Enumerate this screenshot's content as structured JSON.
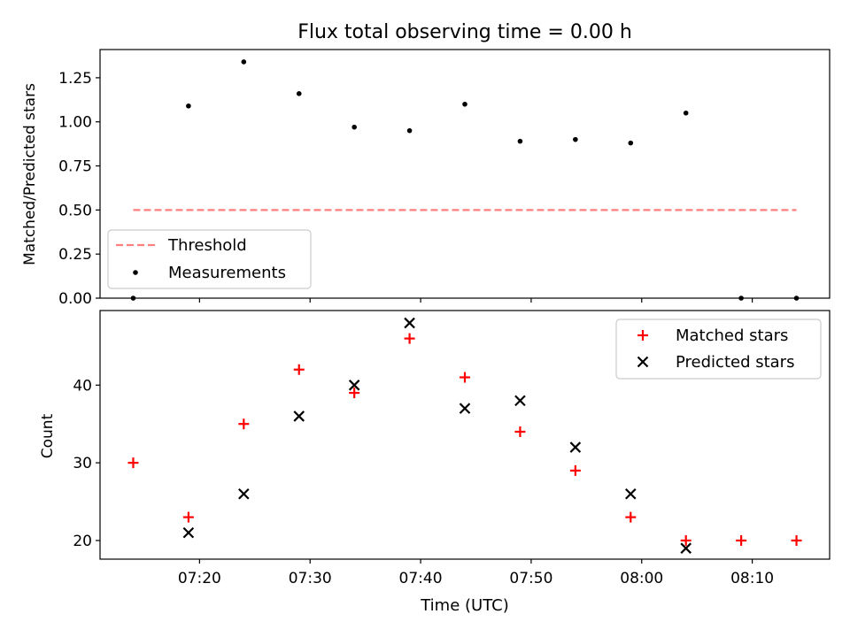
{
  "colors": {
    "threshold": "#ff7f7f",
    "measurement": "#000000",
    "matched": "#ff0000",
    "predicted": "#000000",
    "axes": "#000000",
    "legend_border": "#cccccc"
  },
  "chart_data": [
    {
      "type": "scatter",
      "title": "Flux total observing time = 0.00 h",
      "xlabel": "",
      "ylabel": "Matched/Predicted stars",
      "ylim": [
        0.0,
        1.41
      ],
      "yticks": [
        "0.00",
        "0.25",
        "0.50",
        "0.75",
        "1.00",
        "1.25"
      ],
      "ytick_values": [
        0.0,
        0.25,
        0.5,
        0.75,
        1.0,
        1.25
      ],
      "legend_position": "lower-left",
      "threshold": {
        "label": "Threshold",
        "value": 0.5,
        "x_start_min": 0,
        "x_end_min": 60,
        "style": "dashed"
      },
      "series": [
        {
          "name": "Measurements",
          "marker": "dot",
          "x_min": [
            0,
            5,
            10,
            15,
            20,
            25,
            30,
            35,
            40,
            45,
            50,
            55,
            60
          ],
          "values": [
            0.0,
            1.09,
            1.34,
            1.16,
            0.97,
            0.95,
            1.1,
            0.89,
            0.9,
            0.88,
            1.05,
            0.0,
            0.0
          ]
        }
      ]
    },
    {
      "type": "scatter",
      "xlabel": "Time (UTC)",
      "ylabel": "Count",
      "ylim": [
        17.6,
        49.6
      ],
      "yticks": [
        "20",
        "30",
        "40"
      ],
      "ytick_values": [
        20,
        30,
        40
      ],
      "x_start_time": "07:14",
      "xlim_min": [
        -3,
        63
      ],
      "xticks": [
        "07:20",
        "07:30",
        "07:40",
        "07:50",
        "08:00",
        "08:10"
      ],
      "xtick_min": [
        6,
        16,
        26,
        36,
        46,
        56
      ],
      "legend_position": "upper-right",
      "series": [
        {
          "name": "Matched stars",
          "marker": "plus",
          "x_min": [
            0,
            5,
            10,
            15,
            20,
            25,
            30,
            35,
            40,
            45,
            50,
            55,
            60
          ],
          "values": [
            30,
            23,
            35,
            42,
            39,
            46,
            41,
            34,
            29,
            23,
            20,
            20,
            20
          ]
        },
        {
          "name": "Predicted stars",
          "marker": "x",
          "x_min": [
            5,
            10,
            15,
            20,
            25,
            30,
            35,
            40,
            45,
            50
          ],
          "values": [
            21,
            26,
            36,
            40,
            48,
            37,
            38,
            32,
            26,
            19
          ]
        }
      ]
    }
  ]
}
